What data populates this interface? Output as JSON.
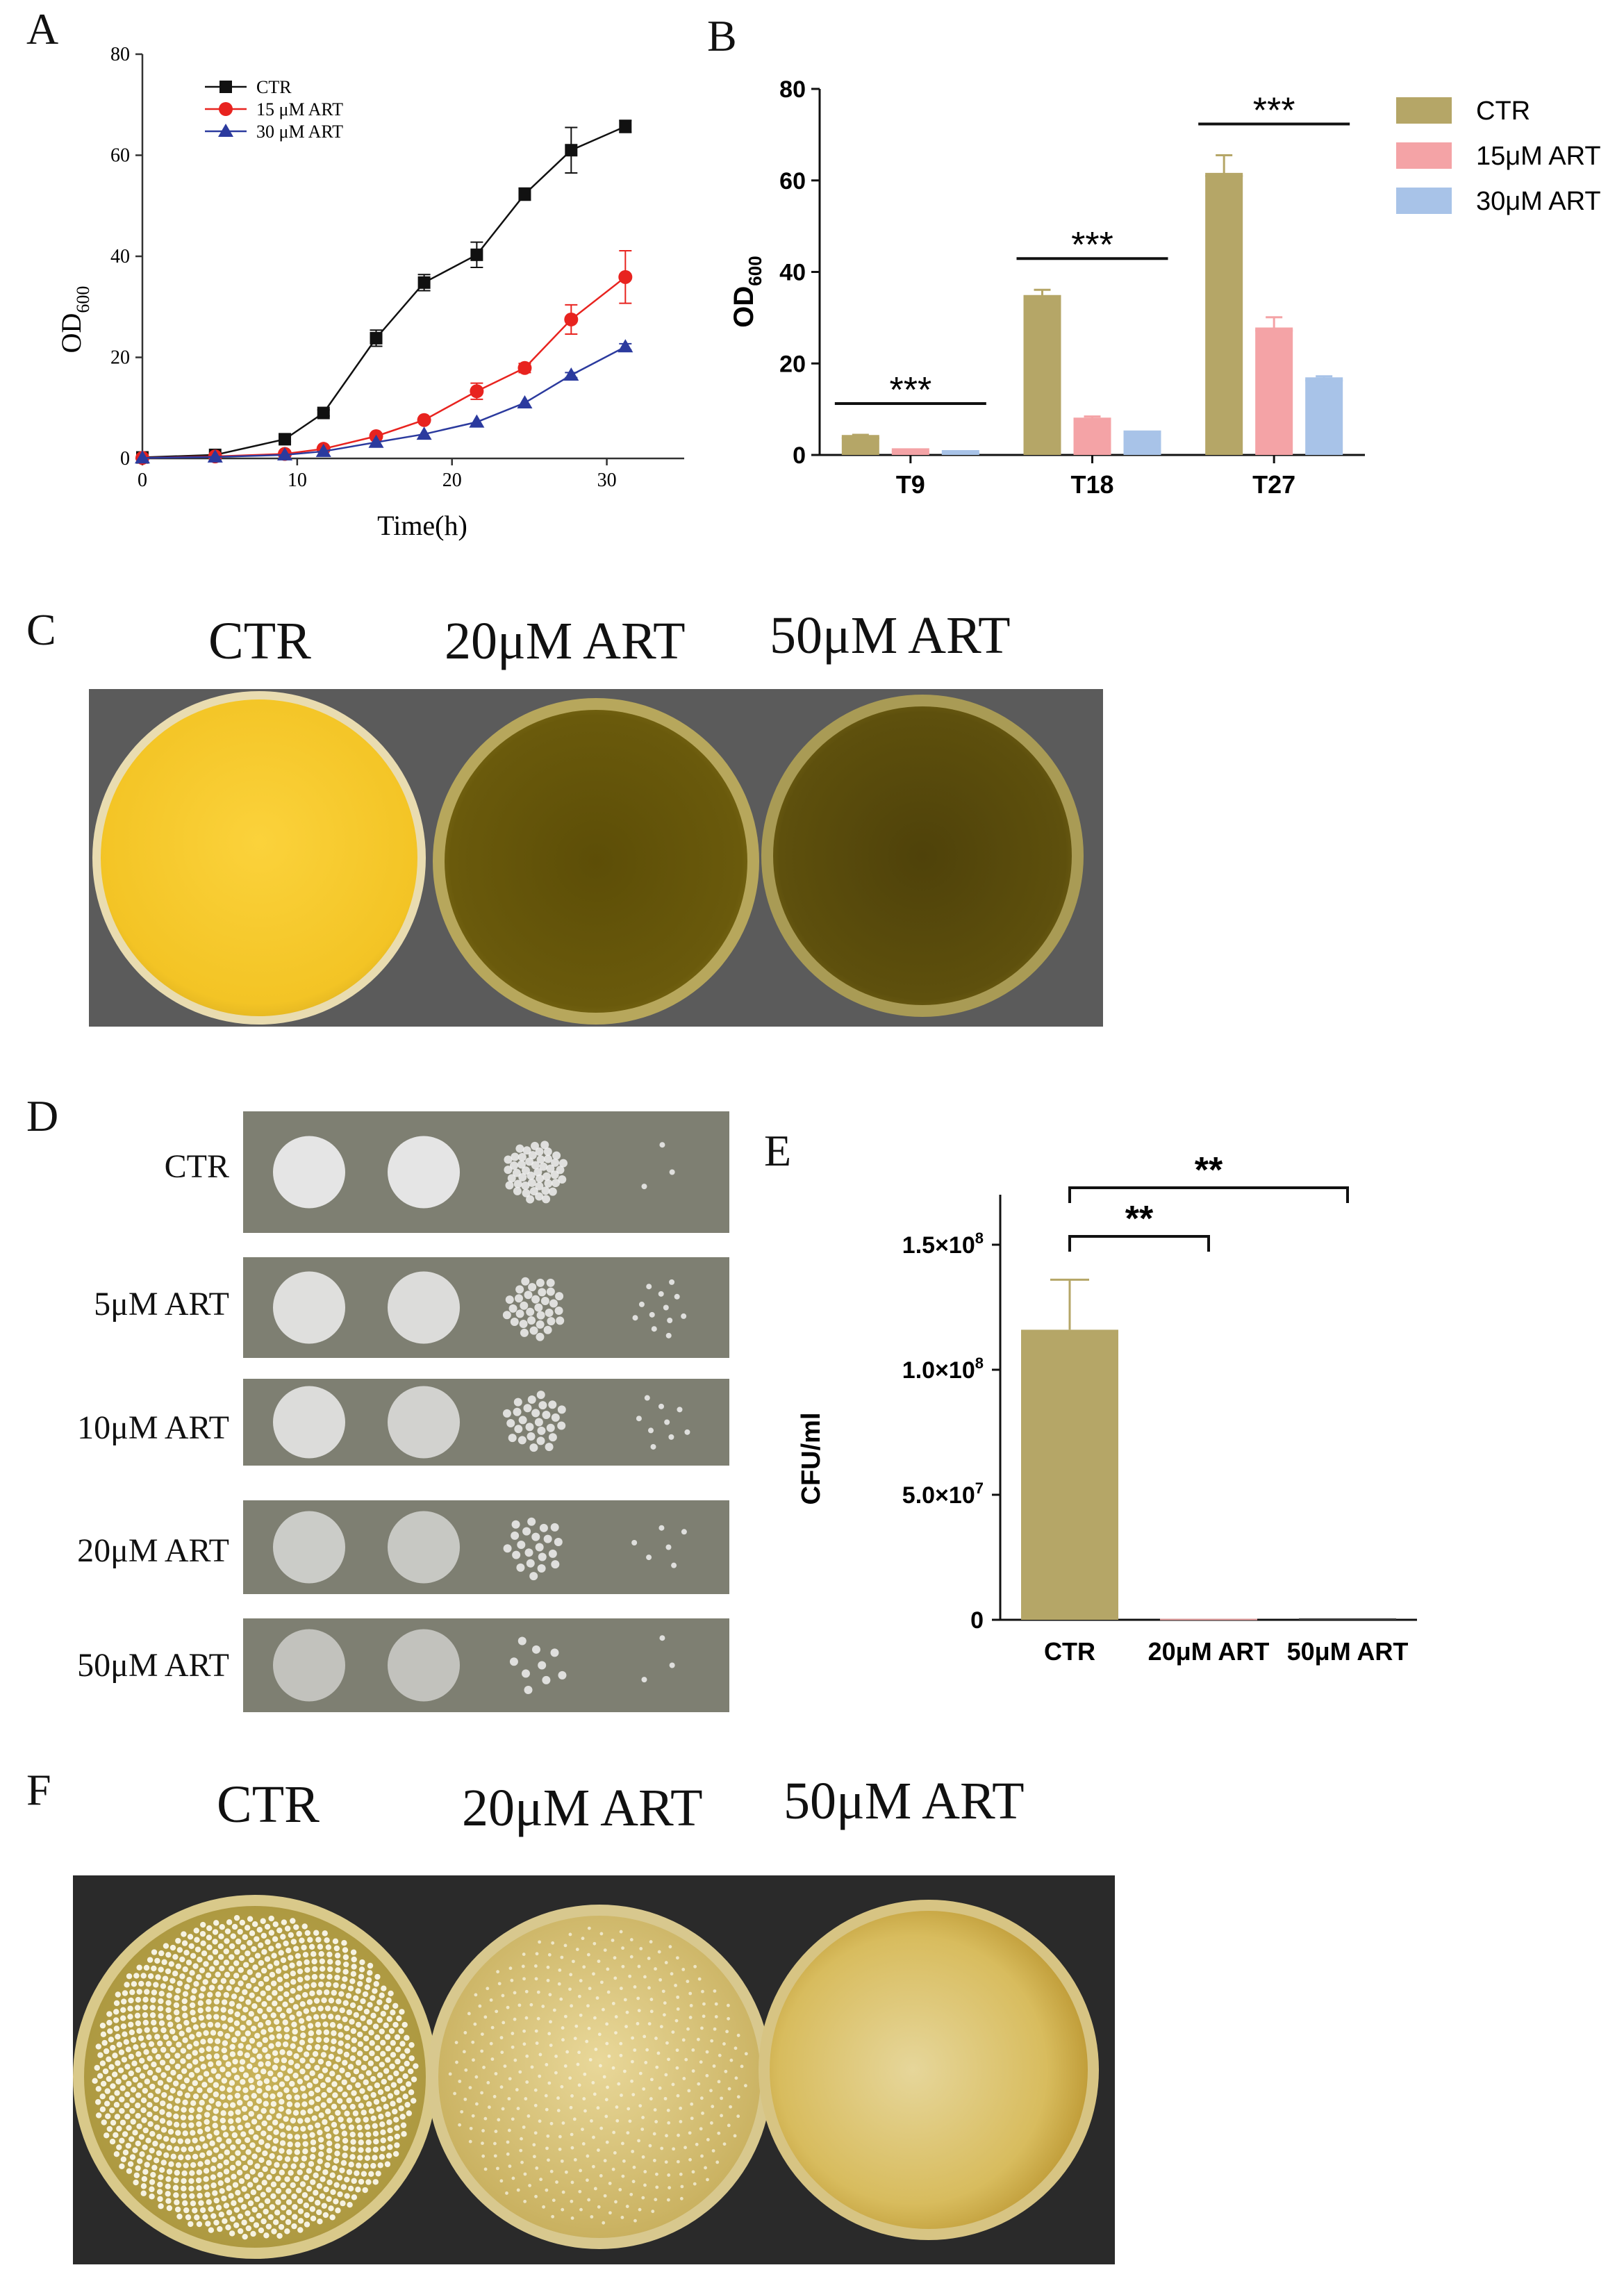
{
  "panel_labels": {
    "a": "A",
    "b": "B",
    "c": "C",
    "d": "D",
    "e": "E",
    "f": "F"
  },
  "chart_data": [
    {
      "id": "A",
      "type": "line",
      "xlabel": "Time(h)",
      "ylabel_main": "OD",
      "ylabel_sub": "600",
      "xlim": [
        0,
        35
      ],
      "ylim": [
        0,
        80
      ],
      "xticks": [
        0,
        10,
        20,
        30
      ],
      "yticks": [
        0,
        20,
        40,
        60,
        80
      ],
      "legend_position": "top-left",
      "series": [
        {
          "name": "CTR",
          "color": "#111111",
          "marker": "square",
          "x": [
            0,
            4.7,
            9.2,
            11.7,
            15.1,
            18.2,
            21.6,
            24.7,
            27.7,
            31.2
          ],
          "y": [
            0.2,
            0.7,
            3.8,
            9.0,
            23.8,
            34.8,
            40.3,
            52.3,
            61.0,
            65.7
          ],
          "err": [
            0,
            0,
            0.5,
            0.6,
            1.6,
            1.6,
            2.5,
            1.2,
            4.5,
            1.2
          ]
        },
        {
          "name": "15 μM ART",
          "color": "#e8231f",
          "marker": "circle",
          "x": [
            0,
            4.7,
            9.2,
            11.7,
            15.1,
            18.2,
            21.6,
            24.7,
            27.7,
            31.2
          ],
          "y": [
            0.1,
            0.4,
            0.9,
            1.9,
            4.4,
            7.6,
            13.3,
            17.9,
            27.5,
            35.9
          ],
          "err": [
            0,
            0,
            0,
            0,
            0,
            0,
            1.6,
            0.9,
            2.9,
            5.2
          ]
        },
        {
          "name": "30 μM ART",
          "color": "#2b3a9e",
          "marker": "triangle",
          "x": [
            0,
            4.7,
            9.2,
            11.7,
            15.1,
            18.2,
            21.6,
            24.7,
            27.7,
            31.2
          ],
          "y": [
            0.1,
            0.3,
            0.7,
            1.4,
            3.2,
            4.8,
            7.2,
            11.0,
            16.5,
            22.1
          ],
          "err": [
            0,
            0,
            0,
            0,
            0,
            0,
            0,
            0,
            0.5,
            0.6
          ]
        }
      ]
    },
    {
      "id": "B",
      "type": "bar",
      "ylabel_main": "OD",
      "ylabel_sub": "600",
      "ylim": [
        0,
        80
      ],
      "yticks": [
        0,
        20,
        40,
        60,
        80
      ],
      "categories": [
        "T9",
        "T18",
        "T27"
      ],
      "legend_position": "right",
      "significance": "***",
      "series": [
        {
          "name": "CTR",
          "color": "#b5a667",
          "values": [
            3.9,
            34.5,
            61.2
          ],
          "err": [
            0.5,
            1.6,
            4.3
          ]
        },
        {
          "name": "15μM ART",
          "color": "#f4a3a6",
          "values": [
            1.0,
            7.7,
            27.4
          ],
          "err": [
            0,
            0.7,
            2.7
          ]
        },
        {
          "name": "30μM ART",
          "color": "#a8c3e8",
          "values": [
            0.6,
            4.9,
            16.5
          ],
          "err": [
            0,
            0,
            0.7
          ]
        }
      ]
    },
    {
      "id": "E",
      "type": "bar",
      "ylabel": "CFU/ml",
      "ylim": [
        0,
        170000000
      ],
      "ytick_values": [
        0,
        50000000,
        100000000,
        150000000
      ],
      "ytick_labels": [
        "0",
        "5.0×10",
        "1.0×10",
        "1.5×10"
      ],
      "ytick_exps": [
        "",
        "7",
        "8",
        "8"
      ],
      "categories": [
        "CTR",
        "20μM ART",
        "50μM ART"
      ],
      "values": [
        116000000,
        400000,
        600000
      ],
      "err": [
        20000000,
        0,
        0
      ],
      "bar_colors": [
        "#b5a667",
        "#e8a0a0",
        "#444444"
      ],
      "significance": [
        "**",
        "**"
      ]
    }
  ],
  "panel_c": {
    "labels": [
      "CTR",
      "20μM ART",
      "50μM ART"
    ]
  },
  "panel_d": {
    "rows": [
      "CTR",
      "5μM ART",
      "10μM ART",
      "20μM ART",
      "50μM ART"
    ]
  },
  "panel_f": {
    "labels": [
      "CTR",
      "20μM ART",
      "50μM ART"
    ]
  }
}
